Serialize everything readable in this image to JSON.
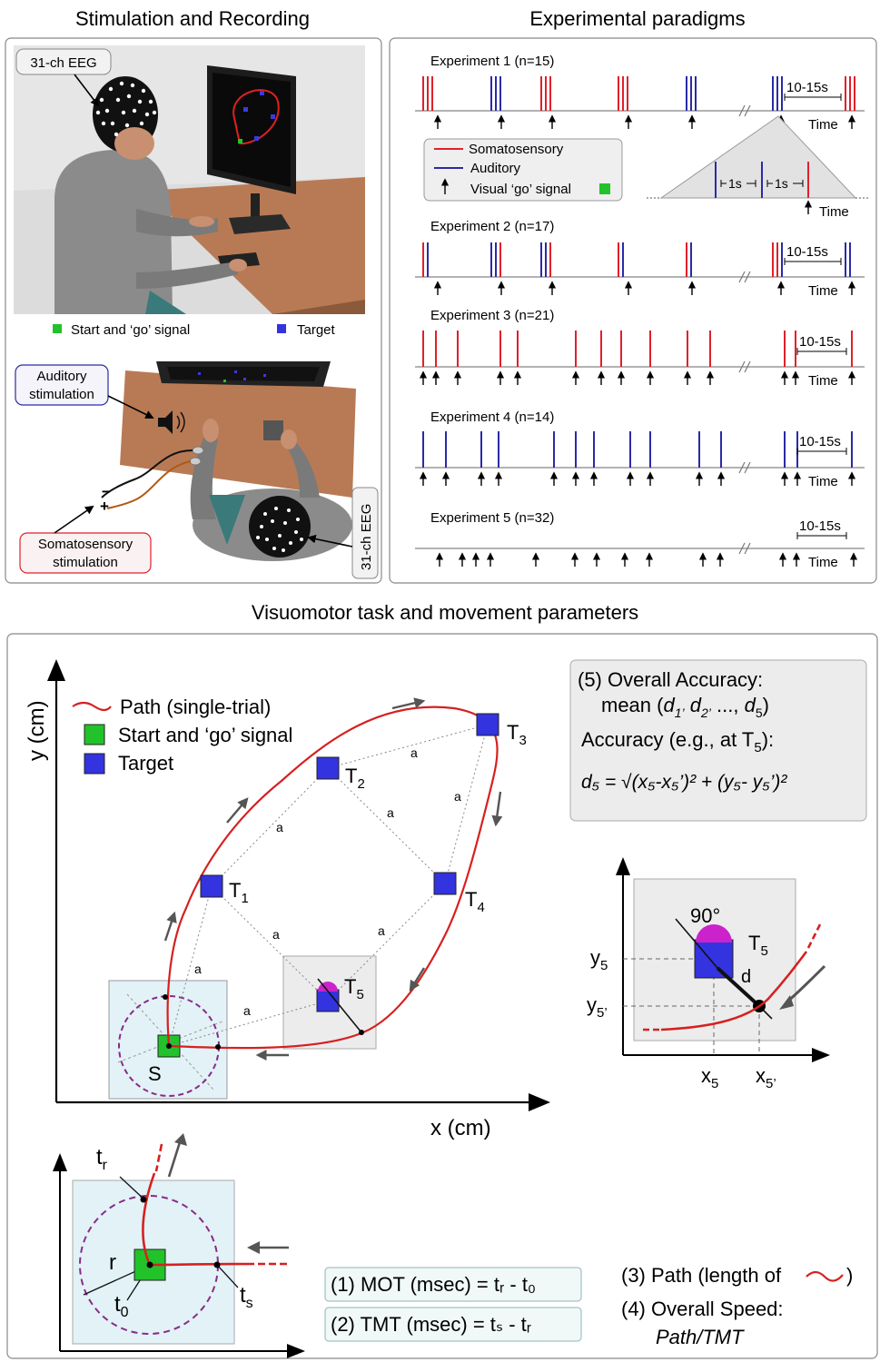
{
  "sections": {
    "stim_title": "Stimulation and Recording",
    "exp_title": "Experimental paradigms",
    "visuo_title": "Visuomotor task and movement parameters"
  },
  "stim": {
    "eeg_label": "31-ch EEG",
    "legend_start": "Start and ‘go’ signal",
    "legend_target": "Target",
    "auditory_label_1": "Auditory",
    "auditory_label_2": "stimulation",
    "somato_label_1": "Somatosensory",
    "somato_label_2": "stimulation",
    "eeg_vertical": "31-ch EEG",
    "minus": "−",
    "plus": "+"
  },
  "experiments": {
    "items": [
      {
        "label": "Experiment 1 (n=15)"
      },
      {
        "label": "Experiment 2 (n=17)"
      },
      {
        "label": "Experiment 3 (n=21)"
      },
      {
        "label": "Experiment 4 (n=14)"
      },
      {
        "label": "Experiment 5 (n=32)"
      }
    ],
    "interval": "10-15s",
    "time": "Time",
    "one_s": "1s",
    "legend": {
      "somato": "Somatosensory",
      "auditory": "Auditory",
      "visual": "Visual ‘go’ signal"
    }
  },
  "visuo": {
    "y_axis": "y (cm)",
    "x_axis": "x (cm)",
    "legend_path": "Path (single-trial)",
    "legend_start": "Start and ‘go’ signal",
    "legend_target": "Target",
    "start": "S",
    "edge": "a",
    "targets": [
      "T",
      "T",
      "T",
      "T",
      "T"
    ],
    "target_subs": [
      "1",
      "2",
      "3",
      "4",
      "5"
    ],
    "acc": {
      "line1": "(5) Overall Accuracy:",
      "line2_a": "mean (",
      "line2_b": "d",
      "line2_c": "1’",
      "line2_d": " d",
      "line2_e": "2’",
      "line2_f": " ..., ",
      "line2_g": "d",
      "line2_h": "5",
      "line2_i": ")",
      "line3": "Accuracy (e.g., at T",
      "line3_sub": "5",
      "line3_end": "):",
      "formula": "d₅ = √(x₅-x₅’)² + (y₅- y₅’)²"
    },
    "inset": {
      "angle": "90°",
      "t5": "T",
      "t5_sub": "5",
      "d": "d",
      "y5": "y",
      "y5_sub": "5",
      "y5p": "y",
      "y5p_sub": "5’",
      "x5": "x",
      "x5_sub": "5",
      "x5p": "x",
      "x5p_sub": "5’"
    },
    "bottom": {
      "tr": "t",
      "tr_sub": "r",
      "r": "r",
      "t0": "t",
      "t0_sub": "0",
      "ts": "t",
      "ts_sub": "s"
    },
    "mot": "(1) MOT (msec) = tᵣ - t₀",
    "tmt": "(2) TMT (msec) = tₛ - tᵣ",
    "path_param": "(3) Path (length of",
    "path_param_end": ")",
    "speed_1": "(4) Overall Speed:",
    "speed_2": "Path/TMT"
  },
  "colors": {
    "somato": "#e0202a",
    "auditory": "#2a2aa8",
    "start": "#22c22a",
    "target": "#3333e0",
    "path": "#d62020",
    "circle": "#8a2a8a",
    "desk": "#b87a55"
  }
}
